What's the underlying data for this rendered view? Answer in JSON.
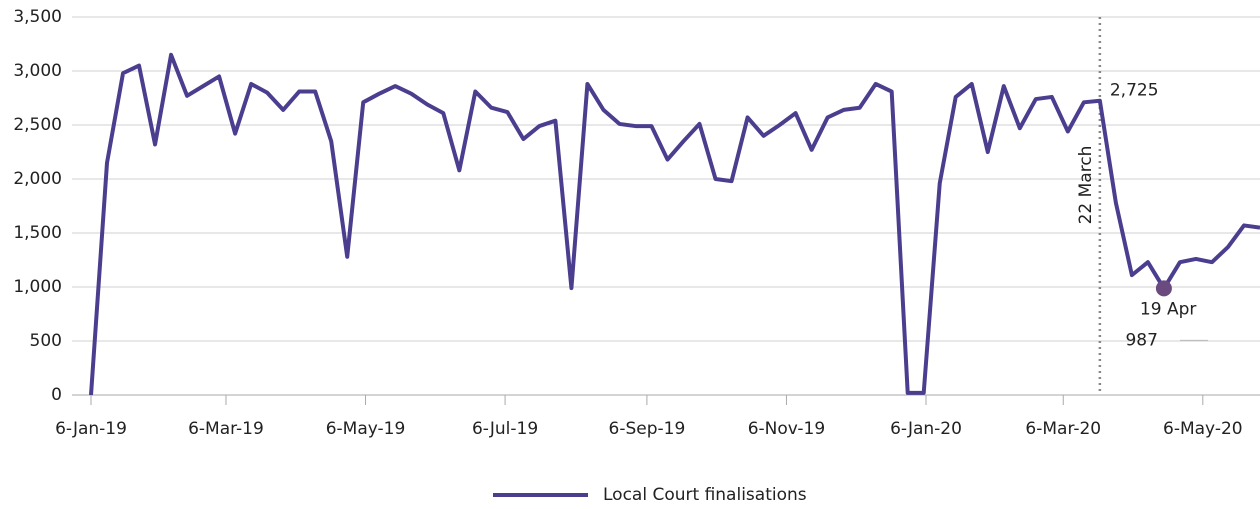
{
  "chart_data": {
    "type": "line",
    "x": [
      "2019-01-06",
      "2019-01-13",
      "2019-01-20",
      "2019-01-27",
      "2019-02-03",
      "2019-02-10",
      "2019-02-17",
      "2019-02-24",
      "2019-03-03",
      "2019-03-10",
      "2019-03-17",
      "2019-03-24",
      "2019-03-31",
      "2019-04-07",
      "2019-04-14",
      "2019-04-21",
      "2019-04-28",
      "2019-05-05",
      "2019-05-12",
      "2019-05-19",
      "2019-05-26",
      "2019-06-02",
      "2019-06-09",
      "2019-06-16",
      "2019-06-23",
      "2019-06-30",
      "2019-07-07",
      "2019-07-14",
      "2019-07-21",
      "2019-07-28",
      "2019-08-04",
      "2019-08-11",
      "2019-08-18",
      "2019-08-25",
      "2019-09-01",
      "2019-09-08",
      "2019-09-15",
      "2019-09-22",
      "2019-09-29",
      "2019-10-06",
      "2019-10-13",
      "2019-10-20",
      "2019-10-27",
      "2019-11-03",
      "2019-11-10",
      "2019-11-17",
      "2019-11-24",
      "2019-12-01",
      "2019-12-08",
      "2019-12-15",
      "2019-12-22",
      "2019-12-29",
      "2020-01-05",
      "2020-01-12",
      "2020-01-19",
      "2020-01-26",
      "2020-02-02",
      "2020-02-09",
      "2020-02-16",
      "2020-02-23",
      "2020-03-01",
      "2020-03-08",
      "2020-03-15",
      "2020-03-22",
      "2020-03-29",
      "2020-04-05",
      "2020-04-12",
      "2020-04-19",
      "2020-04-26",
      "2020-05-03",
      "2020-05-10",
      "2020-05-17",
      "2020-05-24",
      "2020-05-31"
    ],
    "series": [
      {
        "name": "Local Court finalisations",
        "color": "#4b3e8e",
        "values": [
          0,
          2150,
          2980,
          3050,
          2320,
          3150,
          2770,
          2860,
          2950,
          2420,
          2880,
          2800,
          2640,
          2810,
          2810,
          2350,
          1280,
          2710,
          2790,
          2860,
          2790,
          2690,
          2610,
          2080,
          2810,
          2660,
          2620,
          2370,
          2490,
          2540,
          990,
          2880,
          2640,
          2510,
          2490,
          2490,
          2180,
          2350,
          2510,
          2000,
          1980,
          2570,
          2400,
          2500,
          2610,
          2270,
          2570,
          2640,
          2660,
          2880,
          2810,
          20,
          20,
          1960,
          2760,
          2880,
          2250,
          2860,
          2470,
          2740,
          2760,
          2440,
          2710,
          2725,
          1780,
          1110,
          1230,
          987,
          1230,
          1260,
          1230,
          1370,
          1570,
          1550
        ],
        "value_labels": [
          null,
          null,
          null,
          null,
          null,
          null,
          null,
          null,
          null,
          null,
          null,
          null,
          null,
          null,
          null,
          null,
          null,
          null,
          null,
          null,
          null,
          null,
          null,
          null,
          null,
          null,
          null,
          null,
          null,
          null,
          null,
          null,
          null,
          null,
          null,
          null,
          null,
          null,
          null,
          null,
          null,
          null,
          null,
          null,
          null,
          null,
          null,
          null,
          null,
          null,
          null,
          null,
          null,
          null,
          null,
          null,
          null,
          null,
          null,
          null,
          null,
          null,
          null,
          "2,725",
          null,
          null,
          null,
          "987",
          null,
          null,
          null,
          null,
          null,
          null
        ]
      }
    ],
    "xlim": [
      "2019-01-06",
      "2020-05-31"
    ],
    "xticks": [
      {
        "value": "2019-01-06",
        "label": "6-Jan-19"
      },
      {
        "value": "2019-03-06",
        "label": "6-Mar-19"
      },
      {
        "value": "2019-05-06",
        "label": "6-May-19"
      },
      {
        "value": "2019-07-06",
        "label": "6-Jul-19"
      },
      {
        "value": "2019-09-06",
        "label": "6-Sep-19"
      },
      {
        "value": "2019-11-06",
        "label": "6-Nov-19"
      },
      {
        "value": "2020-01-06",
        "label": "6-Jan-20"
      },
      {
        "value": "2020-03-06",
        "label": "6-Mar-20"
      },
      {
        "value": "2020-05-06",
        "label": "6-May-20"
      }
    ],
    "ylim": [
      0,
      3500
    ],
    "yticks": [
      0,
      500,
      {
        "value": 1000,
        "label": "1,000"
      },
      {
        "value": 1500,
        "label": "1,500"
      },
      {
        "value": 2000,
        "label": "2,000"
      },
      {
        "value": 2500,
        "label": "2,500"
      },
      {
        "value": 3000,
        "label": "3,000"
      },
      {
        "value": 3500,
        "label": "3,500"
      }
    ],
    "grid": true,
    "legend": "bottom",
    "annotations": [
      {
        "text": "22 March",
        "x": "2020-03-22"
      },
      {
        "text": "19 Apr",
        "x": "2020-04-19"
      }
    ],
    "marker_color": "#6b4a80"
  }
}
